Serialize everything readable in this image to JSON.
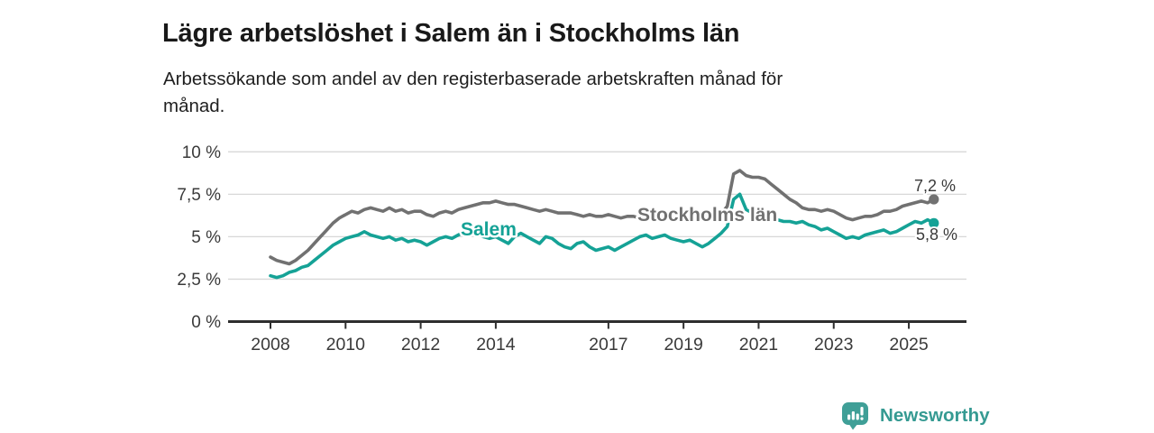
{
  "header": {
    "title": "Lägre arbetslöshet i Salem än i Stockholms län",
    "subtitle": "Arbetssökande som andel av den registerbaserade arbetskraften månad för månad.",
    "subtitle_lines": [
      "Arbetssökande som andel av den registerbaserade arbetskraften månad för",
      "månad."
    ]
  },
  "chart_data": {
    "type": "line",
    "title": "Lägre arbetslöshet i Salem än i Stockholms län",
    "subtitle": "Arbetssökande som andel av den registerbaserade arbetskraften månad för månad.",
    "xlabel": "",
    "ylabel": "",
    "ylim": [
      0,
      10
    ],
    "xlim": [
      2006.9,
      2026.5
    ],
    "grid": "horizontal",
    "legend_position": "inline-labels",
    "x_start": 2008.0,
    "x_step_months": 2,
    "x_ticks": [
      2008,
      2010,
      2012,
      2014,
      2017,
      2019,
      2021,
      2023,
      2025
    ],
    "y_ticks": [
      {
        "value": 0,
        "label": "0 %"
      },
      {
        "value": 2.5,
        "label": "2,5 %"
      },
      {
        "value": 5,
        "label": "5 %"
      },
      {
        "value": 7.5,
        "label": "7,5 %"
      },
      {
        "value": 10,
        "label": "10 %"
      }
    ],
    "series": [
      {
        "name": "Stockholms län",
        "color": "#717171",
        "end_label": "7,2 %",
        "end_value": 7.2,
        "values": [
          3.8,
          3.6,
          3.5,
          3.4,
          3.6,
          3.9,
          4.2,
          4.6,
          5.0,
          5.4,
          5.8,
          6.1,
          6.3,
          6.5,
          6.4,
          6.6,
          6.7,
          6.6,
          6.5,
          6.7,
          6.5,
          6.6,
          6.4,
          6.5,
          6.5,
          6.3,
          6.2,
          6.4,
          6.5,
          6.4,
          6.6,
          6.7,
          6.8,
          6.9,
          7.0,
          7.0,
          7.1,
          7.0,
          6.9,
          6.9,
          6.8,
          6.7,
          6.6,
          6.5,
          6.6,
          6.5,
          6.4,
          6.4,
          6.4,
          6.3,
          6.2,
          6.3,
          6.2,
          6.2,
          6.3,
          6.2,
          6.1,
          6.2,
          6.2,
          6.1,
          6.2,
          6.1,
          6.2,
          6.1,
          6.2,
          6.2,
          6.3,
          6.2,
          6.3,
          6.4,
          6.3,
          6.3,
          6.3,
          6.8,
          8.7,
          8.9,
          8.6,
          8.5,
          8.5,
          8.4,
          8.1,
          7.8,
          7.5,
          7.2,
          7.0,
          6.7,
          6.6,
          6.6,
          6.5,
          6.6,
          6.5,
          6.3,
          6.1,
          6.0,
          6.1,
          6.2,
          6.2,
          6.3,
          6.5,
          6.5,
          6.6,
          6.8,
          6.9,
          7.0,
          7.1,
          7.0,
          7.2
        ]
      },
      {
        "name": "Salem",
        "color": "#15a296",
        "end_label": "5,8 %",
        "end_value": 5.8,
        "values": [
          2.7,
          2.6,
          2.7,
          2.9,
          3.0,
          3.2,
          3.3,
          3.6,
          3.9,
          4.2,
          4.5,
          4.7,
          4.9,
          5.0,
          5.1,
          5.3,
          5.1,
          5.0,
          4.9,
          5.0,
          4.8,
          4.9,
          4.7,
          4.8,
          4.7,
          4.5,
          4.7,
          4.9,
          5.0,
          4.9,
          5.1,
          5.3,
          5.4,
          5.2,
          5.0,
          4.9,
          5.0,
          4.8,
          4.6,
          5.0,
          5.2,
          5.0,
          4.8,
          4.6,
          5.0,
          4.9,
          4.6,
          4.4,
          4.3,
          4.6,
          4.7,
          4.4,
          4.2,
          4.3,
          4.4,
          4.2,
          4.4,
          4.6,
          4.8,
          5.0,
          5.1,
          4.9,
          5.0,
          5.1,
          4.9,
          4.8,
          4.7,
          4.8,
          4.6,
          4.4,
          4.6,
          4.9,
          5.2,
          5.6,
          7.2,
          7.5,
          6.6,
          6.4,
          6.3,
          6.1,
          6.0,
          6.0,
          5.9,
          5.9,
          5.8,
          5.9,
          5.7,
          5.6,
          5.4,
          5.5,
          5.3,
          5.1,
          4.9,
          5.0,
          4.9,
          5.1,
          5.2,
          5.3,
          5.4,
          5.2,
          5.3,
          5.5,
          5.7,
          5.9,
          5.8,
          6.0,
          5.8
        ]
      }
    ]
  },
  "colors": {
    "axis_line": "#2e2e2e",
    "gridline": "#d8d8d8",
    "tick_label": "#3a3a3a",
    "end_label": "#3a3a3a",
    "logo_teal": "#3f9f97"
  },
  "logo": {
    "name": "Newsworthy",
    "icon": "bar-chart-speech-bubble-icon"
  }
}
